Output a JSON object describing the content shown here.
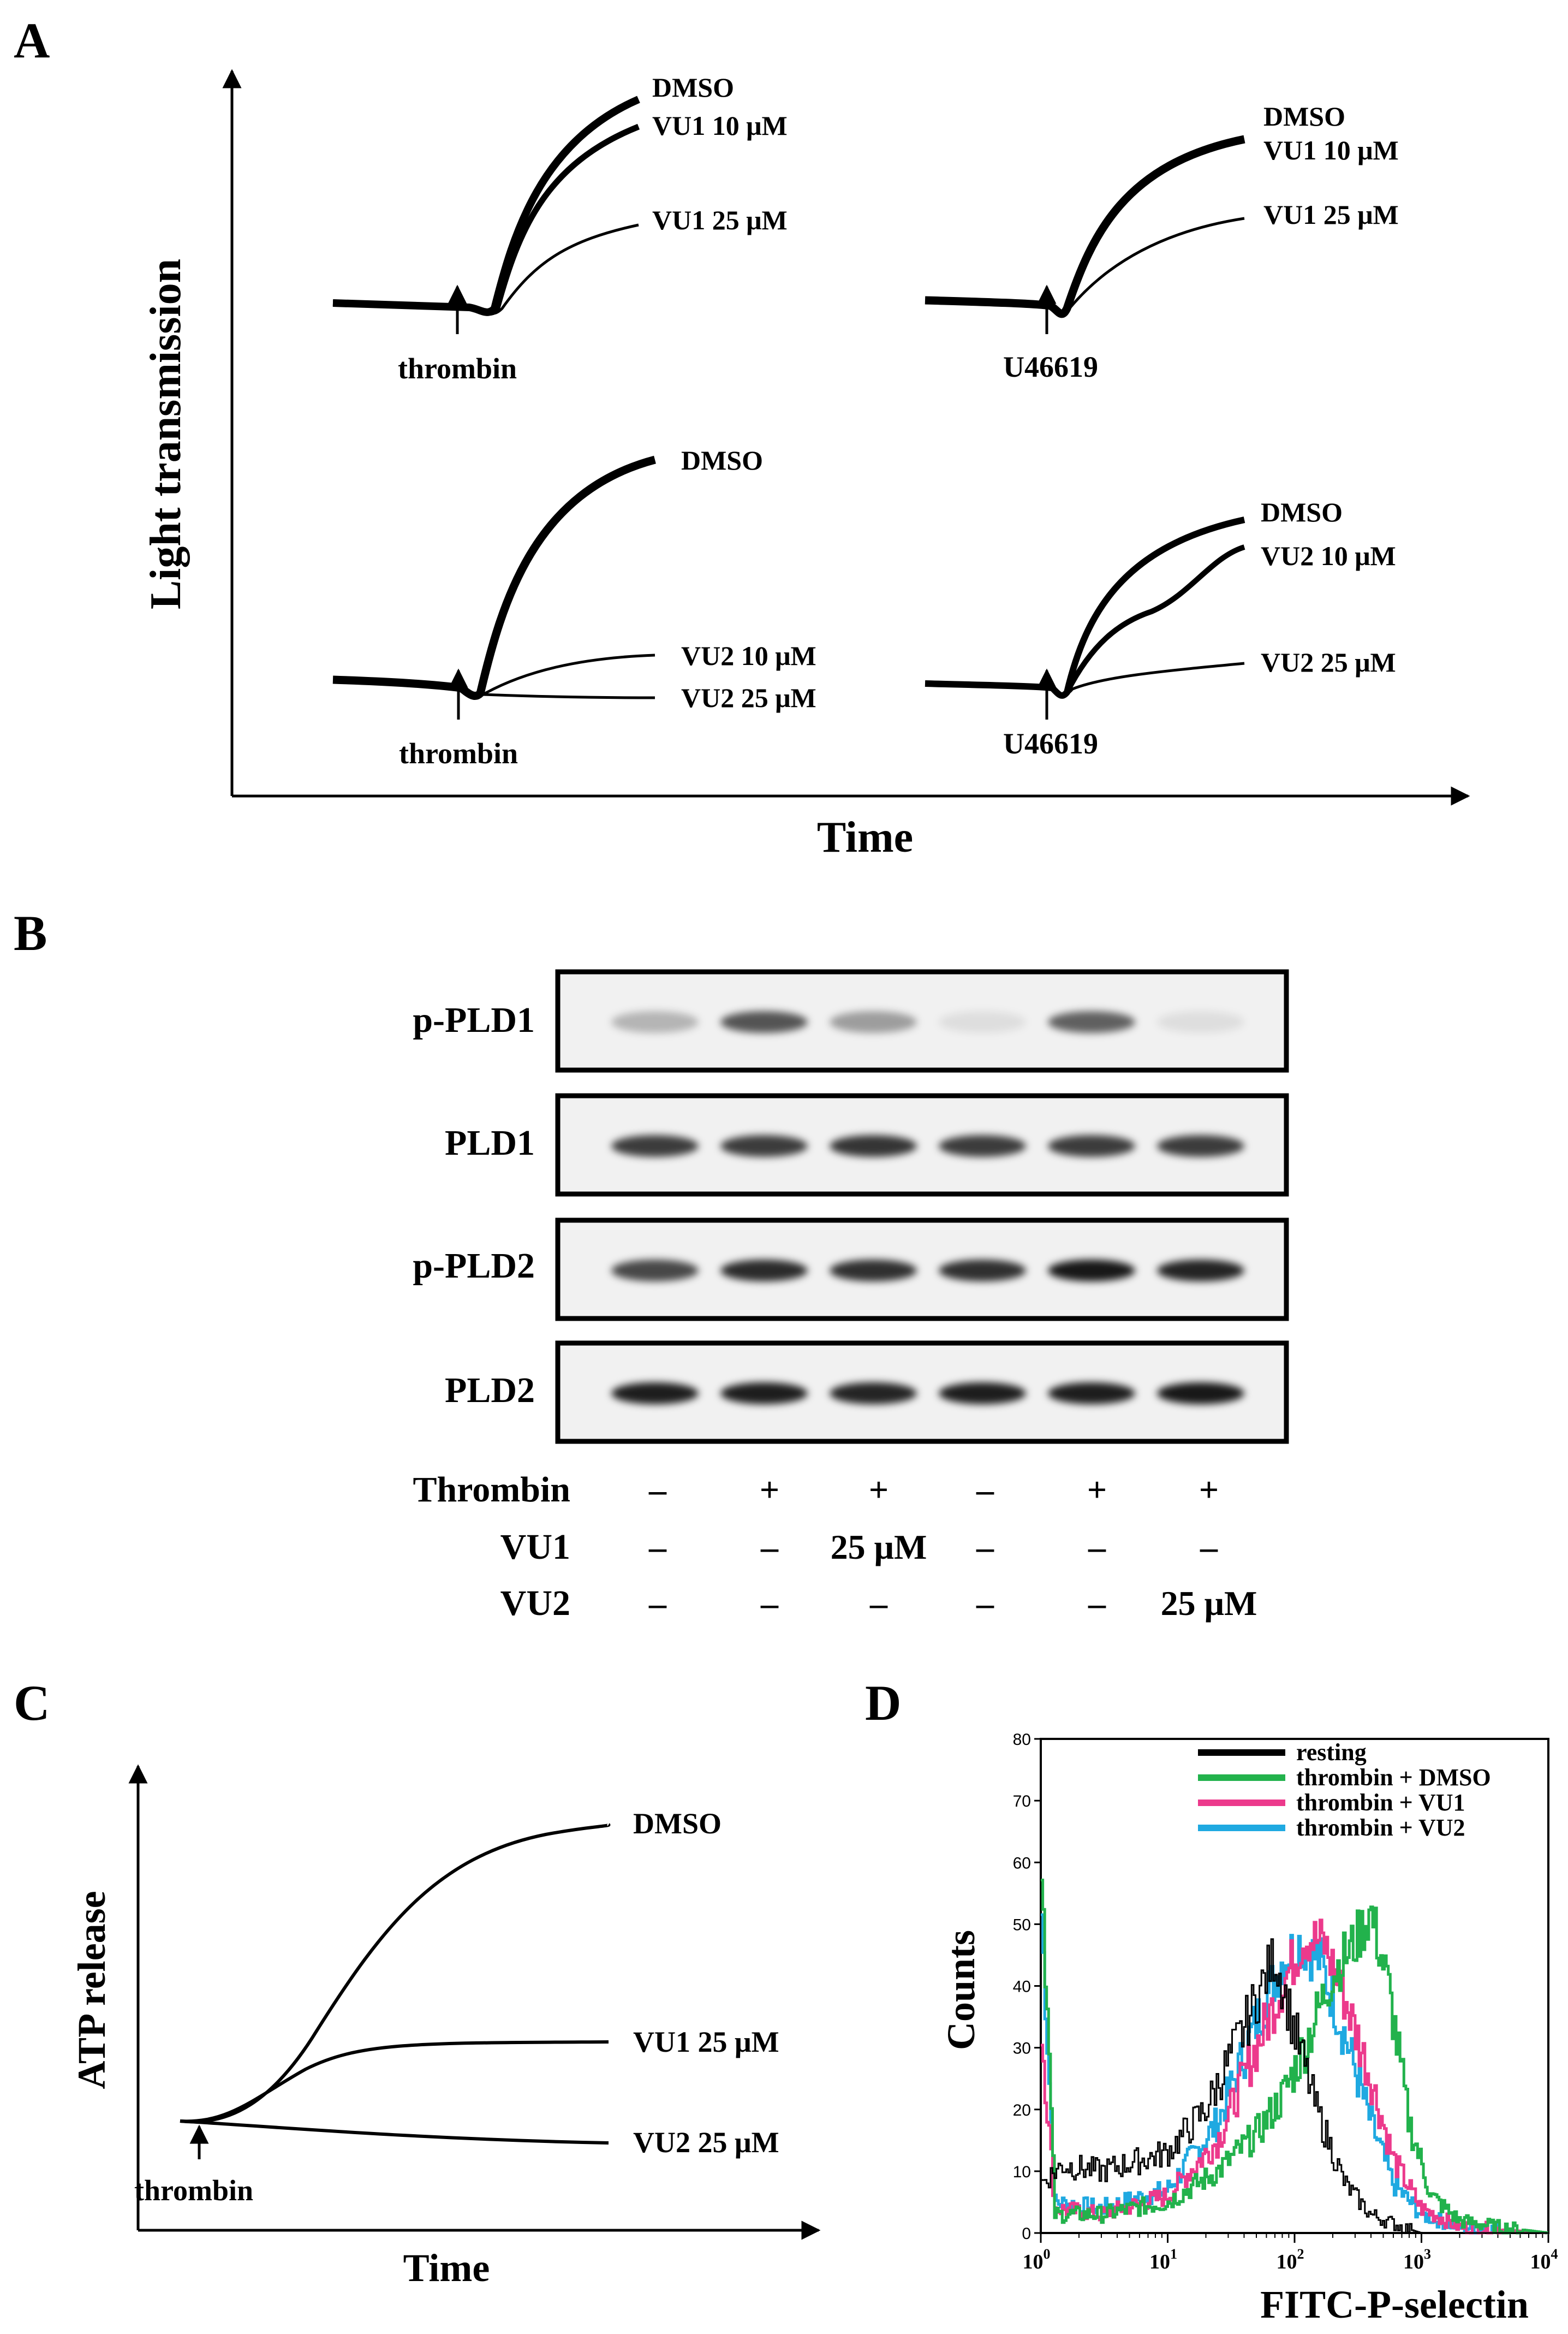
{
  "panels": {
    "A": {
      "letter": "A",
      "y_label": "Light transmission",
      "x_label": "Time",
      "subplots": [
        {
          "agonist": "thrombin",
          "traces": [
            "DMSO",
            "VU1 10 μM",
            "VU1 25 μM"
          ]
        },
        {
          "agonist": "U46619",
          "traces": [
            "DMSO",
            "VU1 10 μM",
            "VU1 25 μM"
          ]
        },
        {
          "agonist": "thrombin",
          "traces": [
            "DMSO",
            "VU2 10 μM",
            "VU2 25 μM"
          ]
        },
        {
          "agonist": "U46619",
          "traces": [
            "DMSO",
            "VU2 10 μM",
            "VU2 25 μM"
          ]
        }
      ]
    },
    "B": {
      "letter": "B",
      "blots": [
        "p-PLD1",
        "PLD1",
        "p-PLD2",
        "PLD2"
      ],
      "band_intensity": {
        "p-PLD1": [
          0.25,
          0.65,
          0.35,
          0.08,
          0.6,
          0.08
        ],
        "PLD1": [
          0.75,
          0.75,
          0.78,
          0.75,
          0.75,
          0.75
        ],
        "p-PLD2": [
          0.7,
          0.82,
          0.8,
          0.8,
          0.9,
          0.85
        ],
        "PLD2": [
          0.88,
          0.88,
          0.85,
          0.88,
          0.88,
          0.9
        ]
      },
      "conditions": [
        {
          "name": "Thrombin",
          "values": [
            "–",
            "+",
            "+",
            "–",
            "+",
            "+"
          ]
        },
        {
          "name": "VU1",
          "values": [
            "–",
            "–",
            "25 μM",
            "–",
            "–",
            "–"
          ]
        },
        {
          "name": "VU2",
          "values": [
            "–",
            "–",
            "–",
            "–",
            "–",
            "25 μM"
          ]
        }
      ]
    },
    "C": {
      "letter": "C",
      "y_label": "ATP release",
      "x_label": "Time",
      "agonist": "thrombin",
      "traces": [
        "DMSO",
        "VU1 25 μM",
        "VU2 25 μM"
      ]
    },
    "D": {
      "letter": "D",
      "y_label": "Counts",
      "x_label": "FITC-P-selectin",
      "y_ticks": [
        "0",
        "10",
        "20",
        "30",
        "40",
        "50",
        "60",
        "70",
        "80"
      ],
      "x_tick_mantissa": "10",
      "x_tick_exponents": [
        "0",
        "1",
        "2",
        "3",
        "4"
      ],
      "x_scale": "log",
      "xlim": [
        1,
        10000
      ],
      "ylim": [
        0,
        80
      ],
      "legend": [
        {
          "label": "resting",
          "color": "#000000"
        },
        {
          "label": "thrombin + DMSO",
          "color": "#22b24c"
        },
        {
          "label": "thrombin + VU1",
          "color": "#ec3a8c"
        },
        {
          "label": "thrombin + VU2",
          "color": "#1fa9e1"
        }
      ]
    }
  },
  "chart_data": [
    {
      "type": "line",
      "panel": "D",
      "x_scale": "log",
      "xlim": [
        1,
        10000
      ],
      "ylim": [
        0,
        80
      ],
      "xlabel": "FITC-P-selectin",
      "ylabel": "Counts",
      "series": [
        {
          "name": "resting",
          "color": "#000000",
          "x": [
            1,
            1.5,
            3,
            10,
            20,
            40,
            70,
            100,
            150,
            250,
            400,
            700,
            1000,
            10000
          ],
          "y": [
            8,
            11,
            10,
            13,
            20,
            33,
            45,
            33,
            20,
            8,
            3,
            1,
            0,
            0
          ]
        },
        {
          "name": "thrombin + DMSO",
          "color": "#22b24c",
          "x": [
            1,
            1.3,
            3,
            10,
            25,
            50,
            80,
            120,
            200,
            300,
            400,
            550,
            800,
            1200,
            2000,
            4000,
            10000
          ],
          "y": [
            65,
            3,
            3,
            5,
            10,
            16,
            22,
            30,
            42,
            47,
            52,
            40,
            18,
            6,
            2,
            1,
            0
          ]
        },
        {
          "name": "thrombin + VU1",
          "color": "#ec3a8c",
          "x": [
            1,
            1.3,
            3,
            10,
            25,
            50,
            80,
            120,
            170,
            250,
            400,
            600,
            1000,
            2000,
            10000
          ],
          "y": [
            35,
            4,
            3,
            6,
            15,
            30,
            40,
            48,
            47,
            38,
            25,
            12,
            4,
            1,
            0
          ]
        },
        {
          "name": "thrombin + VU2",
          "color": "#1fa9e1",
          "x": [
            1,
            1.3,
            3,
            10,
            25,
            50,
            80,
            110,
            160,
            250,
            400,
            600,
            1000,
            2000,
            10000
          ],
          "y": [
            55,
            5,
            4,
            7,
            18,
            34,
            44,
            47,
            44,
            32,
            18,
            8,
            3,
            1,
            0
          ]
        }
      ]
    }
  ]
}
